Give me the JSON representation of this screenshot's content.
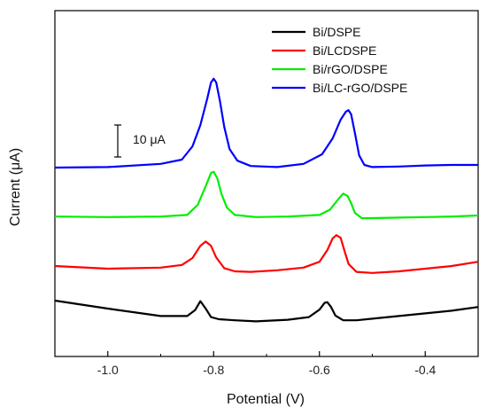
{
  "chart_data": {
    "type": "line",
    "title": "",
    "xlabel": "Potential (V)",
    "ylabel": "Current (μA)",
    "xlim": [
      -1.1,
      -0.3
    ],
    "xticks": [
      -1.0,
      -0.8,
      -0.6,
      -0.4
    ],
    "xtick_labels": [
      "-1.0",
      "-0.8",
      "-0.6",
      "-0.4"
    ],
    "y_tick_labels_shown": false,
    "y_scale_bar": {
      "label": "10 μA",
      "value": 10
    },
    "grid": false,
    "legend_position": "top-right",
    "series": [
      {
        "name": "Bi/DSPE",
        "color": "#000000",
        "x": [
          -1.1,
          -1.0,
          -0.9,
          -0.85,
          -0.835,
          -0.825,
          -0.815,
          -0.805,
          -0.79,
          -0.76,
          -0.72,
          -0.66,
          -0.62,
          -0.6,
          -0.59,
          -0.585,
          -0.578,
          -0.57,
          -0.555,
          -0.53,
          -0.5,
          -0.45,
          -0.4,
          -0.35,
          -0.3
        ],
        "values": [
          4.5,
          3.0,
          1.6,
          1.6,
          2.7,
          4.4,
          3.0,
          1.4,
          1.0,
          0.8,
          0.6,
          0.9,
          1.4,
          2.8,
          4.1,
          4.2,
          3.3,
          1.7,
          0.8,
          0.8,
          1.1,
          1.6,
          2.1,
          2.6,
          3.3
        ]
      },
      {
        "name": "Bi/LCDSPE",
        "color": "#ff0000",
        "x": [
          -1.1,
          -1.0,
          -0.9,
          -0.86,
          -0.84,
          -0.825,
          -0.815,
          -0.805,
          -0.795,
          -0.78,
          -0.76,
          -0.73,
          -0.68,
          -0.63,
          -0.6,
          -0.585,
          -0.575,
          -0.568,
          -0.56,
          -0.553,
          -0.545,
          -0.53,
          -0.5,
          -0.45,
          -0.4,
          -0.35,
          -0.3
        ],
        "values": [
          11.0,
          10.5,
          10.7,
          11.2,
          12.5,
          14.8,
          15.6,
          14.8,
          12.6,
          10.6,
          10.0,
          9.9,
          10.2,
          10.7,
          11.8,
          14.0,
          16.2,
          16.8,
          16.3,
          14.0,
          11.4,
          9.9,
          9.7,
          10.0,
          10.5,
          11.0,
          11.8
        ]
      },
      {
        "name": "Bi/rGO/DSPE",
        "color": "#00ee00",
        "x": [
          -1.1,
          -1.0,
          -0.9,
          -0.85,
          -0.83,
          -0.815,
          -0.805,
          -0.8,
          -0.793,
          -0.785,
          -0.775,
          -0.76,
          -0.72,
          -0.66,
          -0.6,
          -0.58,
          -0.565,
          -0.555,
          -0.547,
          -0.54,
          -0.533,
          -0.52,
          -0.5,
          -0.45,
          -0.4,
          -0.35,
          -0.3
        ],
        "values": [
          20.3,
          20.2,
          20.3,
          20.6,
          22.5,
          26.0,
          28.5,
          28.7,
          27.5,
          24.5,
          22.0,
          20.6,
          20.2,
          20.3,
          20.6,
          21.6,
          23.5,
          24.6,
          24.2,
          22.8,
          21.0,
          20.0,
          20.0,
          20.1,
          20.2,
          20.3,
          20.5
        ]
      },
      {
        "name": "Bi/LC-rGO/DSPE",
        "color": "#0000ff",
        "x": [
          -1.1,
          -1.0,
          -0.9,
          -0.86,
          -0.84,
          -0.825,
          -0.812,
          -0.805,
          -0.8,
          -0.795,
          -0.788,
          -0.78,
          -0.77,
          -0.755,
          -0.73,
          -0.68,
          -0.63,
          -0.595,
          -0.575,
          -0.56,
          -0.55,
          -0.545,
          -0.54,
          -0.532,
          -0.525,
          -0.515,
          -0.5,
          -0.45,
          -0.4,
          -0.35,
          -0.3
        ],
        "values": [
          29.5,
          29.6,
          30.2,
          31.0,
          33.5,
          37.5,
          42.5,
          45.5,
          46.2,
          45.5,
          42.0,
          37.2,
          33.0,
          30.8,
          29.8,
          29.6,
          30.2,
          32.0,
          35.0,
          38.5,
          40.0,
          40.3,
          39.5,
          35.5,
          31.8,
          30.0,
          29.6,
          29.7,
          29.9,
          30.0,
          30.0
        ]
      }
    ]
  }
}
